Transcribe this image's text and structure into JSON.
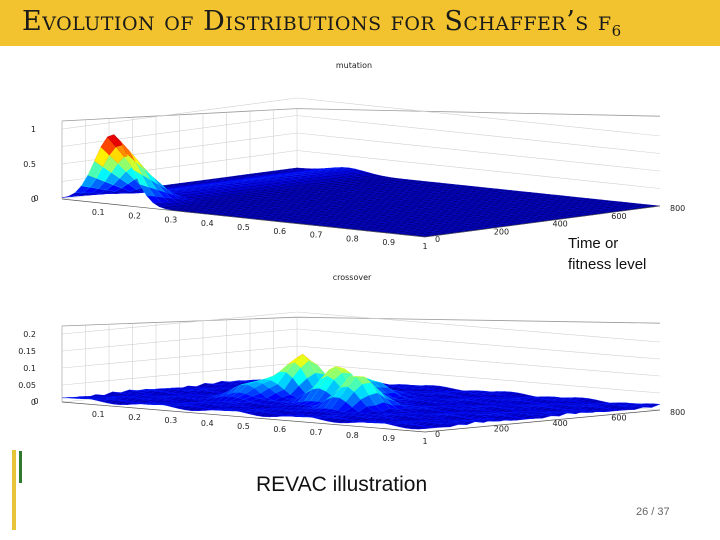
{
  "slide": {
    "title": "Evolution of Distributions for Schaffer’s f",
    "title_subscript": "6",
    "annotation_line1": "Time or",
    "annotation_line2": "fitness level",
    "caption": "REVAC illustration",
    "page": "26 / 37",
    "colors": {
      "title_bar": "#f2c32e",
      "accent_yellow": "#e6c53a",
      "accent_green": "#2f7a2f"
    }
  },
  "chart_data": [
    {
      "type": "surface",
      "title": "mutation",
      "x_ticks": [
        "0",
        "0.1",
        "0.2",
        "0.3",
        "0.4",
        "0.5",
        "0.6",
        "0.7",
        "0.8",
        "0.9",
        "1"
      ],
      "y_ticks": [
        "0",
        "200",
        "400",
        "600",
        "800"
      ],
      "z_ticks": [
        "0",
        "0.5",
        "1"
      ],
      "zlim": [
        0,
        1
      ]
    },
    {
      "type": "surface",
      "title": "crossover",
      "x_ticks": [
        "0",
        "0.1",
        "0.2",
        "0.3",
        "0.4",
        "0.5",
        "0.6",
        "0.7",
        "0.8",
        "0.9",
        "1"
      ],
      "y_ticks": [
        "0",
        "200",
        "400",
        "600",
        "800"
      ],
      "z_ticks": [
        "0",
        "0.05",
        "0.1",
        "0.15",
        "0.2"
      ],
      "zlim": [
        0,
        0.2
      ]
    }
  ]
}
